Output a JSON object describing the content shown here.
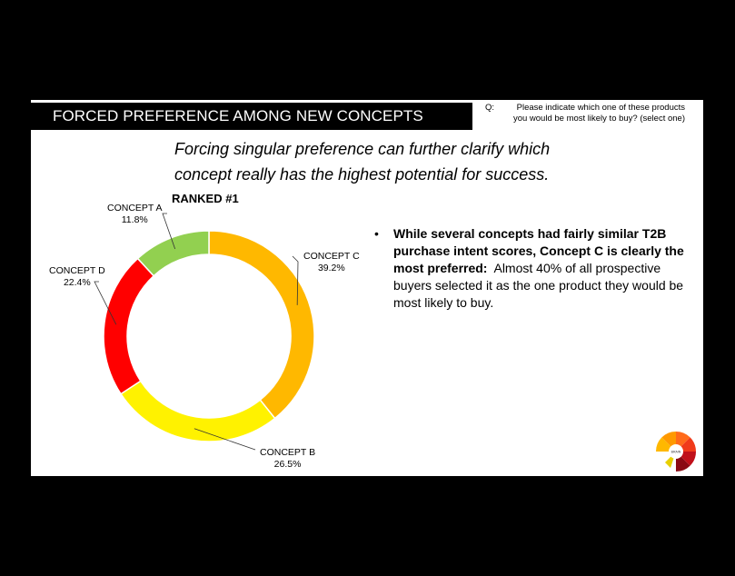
{
  "header": {
    "title": "FORCED PREFERENCE AMONG NEW CONCEPTS",
    "question_label": "Q:",
    "question_text": "Please indicate which one of these products you would be most likely to buy? (select one)"
  },
  "subtitle_line1": "Forcing singular preference can further clarify which",
  "subtitle_line2": "concept really has the highest potential for success.",
  "ranked_label": "RANKED #1",
  "bullet": {
    "marker": "•",
    "bold": "While several concepts had fairly similar T2B purchase intent scores, Concept C is clearly the most preferred:",
    "normal": "Almost 40% of all prospective buyers selected it as the one product they would be most likely to buy."
  },
  "chart_data": {
    "type": "pie",
    "variant": "donut",
    "unit": "%",
    "slices": [
      {
        "name": "CONCEPT C",
        "value": 39.2,
        "value_label": "39.2%",
        "color": "#FFB800"
      },
      {
        "name": "CONCEPT B",
        "value": 26.5,
        "value_label": "26.5%",
        "color": "#FFF200"
      },
      {
        "name": "CONCEPT D",
        "value": 22.4,
        "value_label": "22.4%",
        "color": "#FF0000"
      },
      {
        "name": "CONCEPT A",
        "value": 11.8,
        "value_label": "11.8%",
        "color": "#92D050"
      }
    ],
    "start_angle_deg": 0,
    "direction": "clockwise",
    "label_position": "outside with leader lines"
  },
  "logo": {
    "icon": "semicircle-gauge-logo-icon",
    "center_text": "BRAIN"
  }
}
